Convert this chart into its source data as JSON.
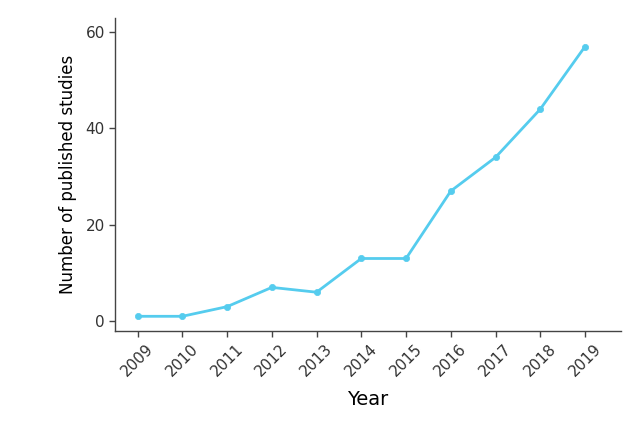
{
  "years": [
    2009,
    2010,
    2011,
    2012,
    2013,
    2014,
    2015,
    2016,
    2017,
    2018,
    2019
  ],
  "values": [
    1,
    1,
    3,
    7,
    6,
    13,
    13,
    27,
    34,
    44,
    57
  ],
  "line_color": "#55CCEE",
  "marker_color": "#55CCEE",
  "marker_style": "o",
  "marker_size": 4.5,
  "line_width": 2.0,
  "xlabel": "Year",
  "ylabel": "Number of published studies",
  "ylim": [
    -2,
    63
  ],
  "xlim": [
    2008.5,
    2019.8
  ],
  "yticks": [
    0,
    20,
    40,
    60
  ],
  "xticks": [
    2009,
    2010,
    2011,
    2012,
    2013,
    2014,
    2015,
    2016,
    2017,
    2018,
    2019
  ],
  "xlabel_fontsize": 14,
  "ylabel_fontsize": 12,
  "tick_fontsize": 11,
  "background_color": "#ffffff",
  "spine_color": "#444444"
}
